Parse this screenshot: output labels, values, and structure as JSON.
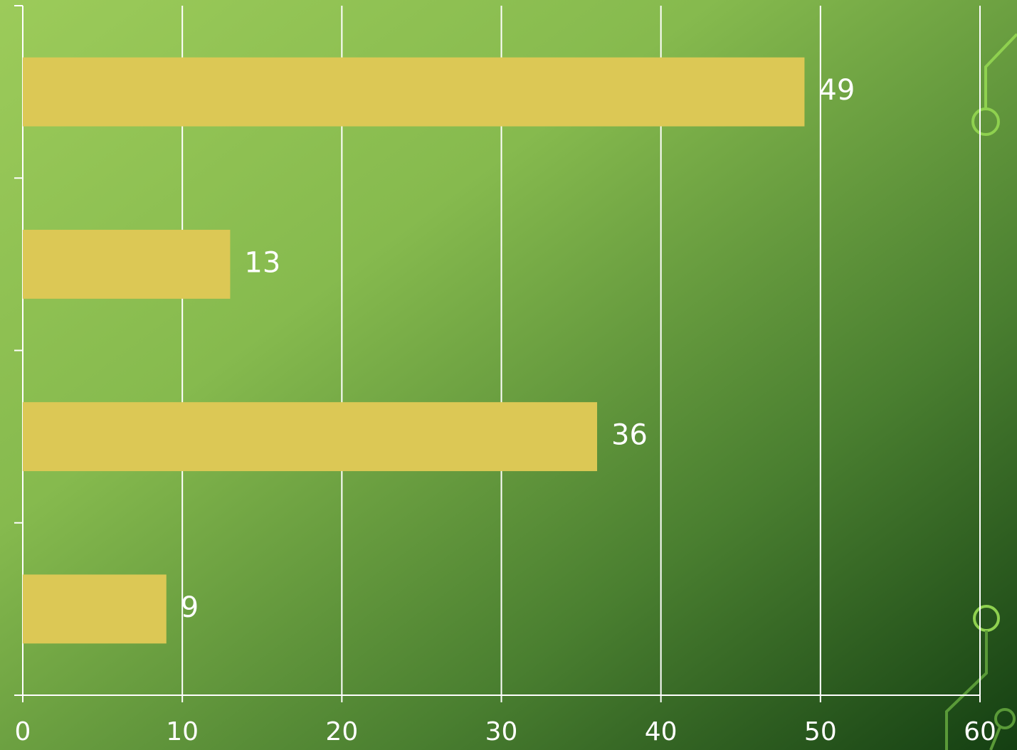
{
  "chart_data": {
    "type": "barh",
    "categories": [
      null,
      null,
      null,
      null
    ],
    "values": [
      49,
      13,
      36,
      9
    ],
    "color": "#dcc855",
    "xlim": [
      0,
      60
    ],
    "xticks": [
      0,
      10,
      20,
      30,
      40,
      50,
      60
    ],
    "grid": true
  }
}
